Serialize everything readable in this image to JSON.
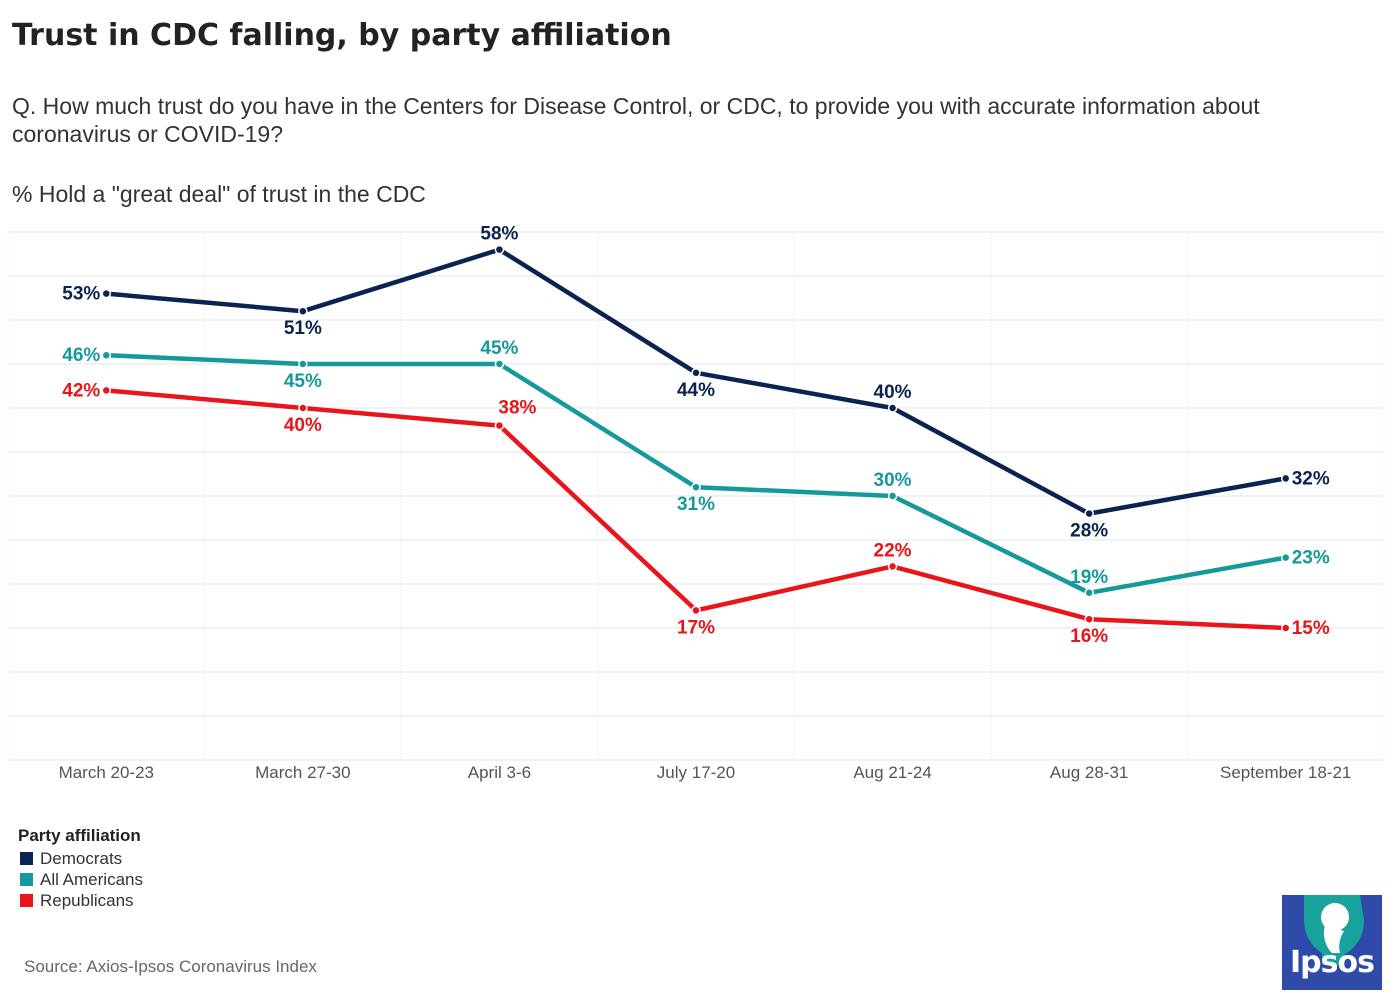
{
  "title": "Trust in CDC falling, by party affiliation",
  "question": "Q. How much trust do you have in the Centers for Disease Control, or CDC, to provide you with accurate information about coronavirus or COVID-19?",
  "subtitle": "% Hold a \"great deal\" of trust in the CDC",
  "legend": {
    "title": "Party affiliation",
    "items": [
      "Democrats",
      "All Americans",
      "Republicans"
    ]
  },
  "source": "Source: Axios-Ipsos Coronavirus Index",
  "logo": {
    "text": "Ipsos",
    "icon": "ipsos-head-icon",
    "bg_color": "#2f4aa8",
    "accent_color": "#1aa39d"
  },
  "chart_data": {
    "type": "line",
    "title": "Trust in CDC falling, by party affiliation",
    "ylabel": "% Hold a \"great deal\" of trust in the CDC",
    "xlabel": "",
    "categories": [
      "March 20-23",
      "March 27-30",
      "April 3-6",
      "July 17-20",
      "Aug 21-24",
      "Aug 28-31",
      "September 18-21"
    ],
    "ylim": [
      0,
      60
    ],
    "grid": true,
    "series": [
      {
        "name": "Democrats",
        "color": "#0b2350",
        "values": [
          53,
          51,
          58,
          44,
          40,
          28,
          32
        ],
        "labels": [
          "53%",
          "51%",
          "58%",
          "44%",
          "40%",
          "28%",
          "32%"
        ],
        "label_pos": [
          "left",
          "below",
          "above",
          "below",
          "above",
          "below",
          "right"
        ]
      },
      {
        "name": "All Americans",
        "color": "#16999a",
        "values": [
          46,
          45,
          45,
          31,
          30,
          19,
          23
        ],
        "labels": [
          "46%",
          "45%",
          "45%",
          "31%",
          "30%",
          "19%",
          "23%"
        ],
        "label_pos": [
          "left",
          "below",
          "above",
          "below",
          "above",
          "above",
          "right"
        ]
      },
      {
        "name": "Republicans",
        "color": "#e8151a",
        "values": [
          42,
          40,
          38,
          17,
          22,
          16,
          15
        ],
        "labels": [
          "42%",
          "40%",
          "38%",
          "17%",
          "22%",
          "16%",
          "15%"
        ],
        "label_pos": [
          "left",
          "below",
          "above-right",
          "below",
          "above",
          "below",
          "right"
        ]
      }
    ]
  }
}
